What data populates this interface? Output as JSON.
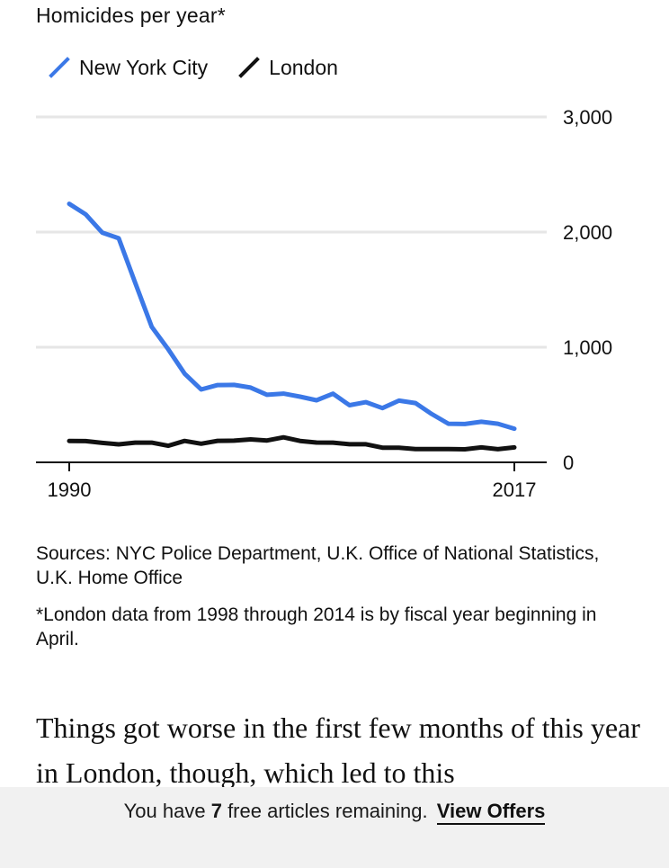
{
  "chart_data": {
    "type": "line",
    "title": "Homicides per year*",
    "xlabel": "",
    "ylabel": "",
    "x": [
      1990,
      1991,
      1992,
      1993,
      1994,
      1995,
      1996,
      1997,
      1998,
      1999,
      2000,
      2001,
      2002,
      2003,
      2004,
      2005,
      2006,
      2007,
      2008,
      2009,
      2010,
      2011,
      2012,
      2013,
      2014,
      2015,
      2016,
      2017
    ],
    "x_tick_labels": [
      "1990",
      "2017"
    ],
    "x_ticks": [
      1990,
      2017
    ],
    "ylim": [
      0,
      3000
    ],
    "y_ticks": [
      0,
      1000,
      2000,
      3000
    ],
    "y_tick_labels": [
      "0",
      "1,000",
      "2,000",
      "3,000"
    ],
    "grid": true,
    "y_axis_side": "right",
    "legend_position": "top-left",
    "series": [
      {
        "name": "New York City",
        "color": "#3b78e7",
        "values": [
          2245,
          2154,
          1995,
          1946,
          1561,
          1177,
          983,
          770,
          633,
          671,
          673,
          649,
          587,
          597,
          570,
          539,
          596,
          496,
          523,
          471,
          536,
          515,
          419,
          335,
          333,
          352,
          335,
          292
        ]
      },
      {
        "name": "London",
        "color": "#111111",
        "values": [
          185,
          184,
          169,
          156,
          171,
          171,
          144,
          186,
          162,
          187,
          188,
          199,
          190,
          217,
          186,
          172,
          171,
          157,
          157,
          127,
          127,
          116,
          115,
          115,
          113,
          130,
          114,
          130
        ]
      }
    ]
  },
  "chart": {
    "title": "Homicides per year*",
    "legend": [
      {
        "label": "New York City",
        "color": "#3b78e7",
        "icon": "slash-line-icon"
      },
      {
        "label": "London",
        "color": "#111111",
        "icon": "slash-line-icon"
      }
    ]
  },
  "sources_text": "Sources: NYC Police Department, U.K. Office of National Statistics, U.K. Home Office",
  "footnote_text": "*London data from 1998 through 2014 is by fiscal year beginning in April.",
  "article": {
    "body_text": "Things got worse in the first few months of this year in London, though, which led to this"
  },
  "paywall": {
    "prefix": "You have",
    "count": "7",
    "suffix": "free articles remaining.",
    "link_label": "View Offers"
  }
}
